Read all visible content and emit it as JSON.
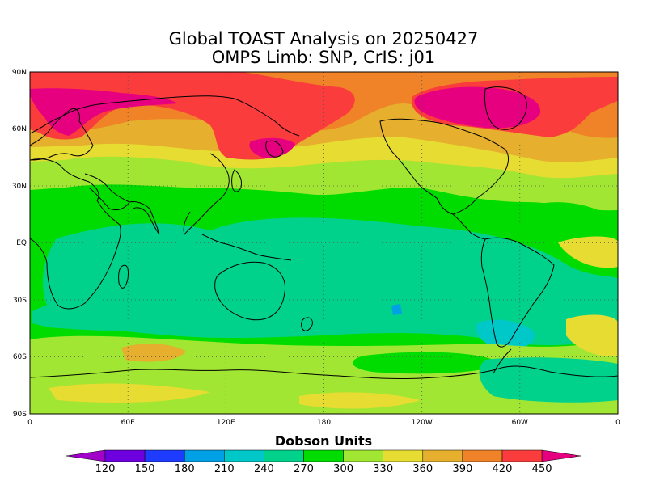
{
  "title": {
    "line1": "Global TOAST Analysis on 20250427",
    "line2": "OMPS Limb: SNP,  CrIS: j01"
  },
  "axes": {
    "lat_ticks": [
      "90N",
      "60N",
      "30N",
      "EQ",
      "30S",
      "60S",
      "90S"
    ],
    "lon_ticks": [
      "0",
      "60E",
      "120E",
      "180",
      "120W",
      "60W",
      "0"
    ],
    "grid": "dotted"
  },
  "colorbar": {
    "title": "Dobson Units",
    "levels": [
      120,
      150,
      180,
      210,
      240,
      270,
      300,
      330,
      360,
      390,
      420,
      450
    ],
    "colors": [
      "#a000c8",
      "#6e00e0",
      "#1e3cff",
      "#00a0e6",
      "#00c8c8",
      "#00d28c",
      "#00dc00",
      "#a0e632",
      "#e6dc32",
      "#e6af2d",
      "#f08228",
      "#fa3c3c",
      "#e60080"
    ]
  },
  "palette": {
    "ocean_base": "#00dc00",
    "tropical_pacific": "#00d28c",
    "high_north": "#fa3c3c",
    "ozone_max": "#e60080",
    "mid_lat": "#a0e632",
    "subpolar": "#e6af2d",
    "low_south": "#00c8c8"
  }
}
